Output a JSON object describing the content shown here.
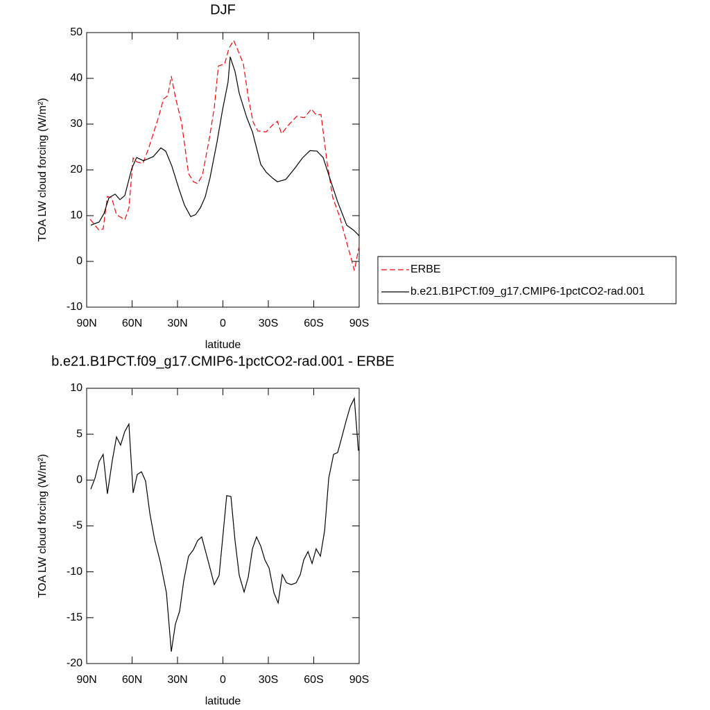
{
  "chart_data": [
    {
      "type": "line",
      "title": "DJF",
      "xlabel": "latitude",
      "ylabel": "TOA LW cloud forcing (W/m²)",
      "xlim": [
        90,
        -90
      ],
      "xticks": [
        {
          "value": 90,
          "label": "90N"
        },
        {
          "value": 60,
          "label": "60N"
        },
        {
          "value": 30,
          "label": "30N"
        },
        0,
        {
          "value": -30,
          "label": "30S"
        },
        {
          "value": -60,
          "label": "60S"
        },
        {
          "value": -90,
          "label": "90S"
        }
      ],
      "ylim": [
        -10,
        50
      ],
      "yticks": [
        -10,
        0,
        10,
        20,
        30,
        40,
        50
      ],
      "legend": "right",
      "series": [
        {
          "name": "ERBE",
          "color": "#ff0000",
          "dashed": true,
          "x": [
            87.7,
            81.8,
            79.1,
            76.3,
            73.5,
            70.3,
            64.8,
            62.1,
            59.3,
            56.6,
            52.9,
            49.3,
            42.9,
            39.2,
            36.4,
            34.1,
            31.4,
            27.3,
            22.7,
            19.5,
            16.7,
            13.5,
            9.0,
            5.7,
            3.0,
            -1.2,
            -3.9,
            -7.1,
            -9.8,
            -13.5,
            -16.7,
            -19.9,
            -23.1,
            -28.6,
            -32.8,
            -36.0,
            -38.7,
            -43.3,
            -48.8,
            -53.8,
            -58.4,
            -61.6,
            -64.8,
            -68.9,
            -72.6,
            -77.2,
            -81.8,
            -85.0,
            -86.8,
            -90.0
          ],
          "values": [
            9.2,
            6.8,
            7.1,
            14.2,
            13.9,
            10.2,
            9.1,
            11.7,
            22.6,
            21.7,
            21.4,
            24.5,
            31.1,
            35.5,
            36.2,
            40.5,
            35.9,
            30.3,
            19.2,
            17.4,
            17.0,
            18.9,
            26.8,
            33.6,
            42.7,
            43.2,
            46.5,
            48.3,
            46.2,
            43.2,
            35.9,
            30.5,
            28.5,
            28.3,
            29.8,
            30.6,
            27.9,
            29.8,
            31.7,
            31.4,
            33.3,
            32.0,
            32.1,
            21.4,
            13.9,
            9.7,
            4.1,
            0.3,
            -2.0,
            3.3
          ]
        },
        {
          "name": "b.e21.B1PCT.f09_g17.CMIP6-1pctCO2-rad.001",
          "color": "#000000",
          "dashed": false,
          "x": [
            87.3,
            81.8,
            78.5,
            75.3,
            71.2,
            68.0,
            64.8,
            60.2,
            57.0,
            52.4,
            46.0,
            41.0,
            37.8,
            33.7,
            29.1,
            25.4,
            21.3,
            18.1,
            14.9,
            11.7,
            8.5,
            3.9,
            0.2,
            -3.4,
            -4.8,
            -8.0,
            -10.8,
            -15.8,
            -19.5,
            -25.0,
            -28.6,
            -32.8,
            -36.0,
            -41.5,
            -47.4,
            -52.5,
            -57.5,
            -62.1,
            -66.2,
            -70.8,
            -75.8,
            -81.8,
            -86.4,
            -90.0
          ],
          "values": [
            7.9,
            8.6,
            10.5,
            13.9,
            14.7,
            13.5,
            14.4,
            20.3,
            22.7,
            22.0,
            22.9,
            24.8,
            24.1,
            20.8,
            15.9,
            12.3,
            9.8,
            10.2,
            11.7,
            14.1,
            18.3,
            26.1,
            33.2,
            39.2,
            44.7,
            41.5,
            36.7,
            31.4,
            28.3,
            21.2,
            19.5,
            18.2,
            17.4,
            17.9,
            20.3,
            22.6,
            24.2,
            24.1,
            22.7,
            18.0,
            13.0,
            7.9,
            6.8,
            5.6
          ]
        }
      ]
    },
    {
      "type": "line",
      "title": "b.e21.B1PCT.f09_g17.CMIP6-1pctCO2-rad.001 - ERBE",
      "xlabel": "latitude",
      "ylabel": "TOA LW cloud forcing (W/m²)",
      "xlim": [
        90,
        -90
      ],
      "xticks": [
        {
          "value": 90,
          "label": "90N"
        },
        {
          "value": 60,
          "label": "60N"
        },
        {
          "value": 30,
          "label": "30N"
        },
        0,
        {
          "value": -30,
          "label": "30S"
        },
        {
          "value": -60,
          "label": "60S"
        },
        {
          "value": -90,
          "label": "90S"
        }
      ],
      "ylim": [
        -20,
        10
      ],
      "yticks": [
        -20,
        -15,
        -10,
        -5,
        0,
        5,
        10
      ],
      "series": [
        {
          "color": "#000000",
          "dashed": false,
          "x": [
            87.3,
            84.5,
            81.8,
            79.1,
            76.3,
            73.1,
            70.3,
            67.6,
            64.8,
            62.1,
            59.3,
            56.6,
            53.8,
            51.1,
            48.3,
            45.1,
            41.4,
            37.3,
            34.1,
            31.4,
            28.6,
            25.9,
            22.7,
            19.5,
            16.7,
            14.0,
            9.0,
            5.7,
            2.5,
            -2.5,
            -5.3,
            -8.0,
            -10.8,
            -14.0,
            -16.7,
            -19.5,
            -22.2,
            -25.0,
            -27.7,
            -30.5,
            -33.7,
            -36.5,
            -39.2,
            -42.0,
            -45.2,
            -48.4,
            -51.1,
            -53.4,
            -56.2,
            -58.9,
            -61.6,
            -64.4,
            -67.2,
            -69.9,
            -73.1,
            -75.8,
            -78.6,
            -81.3,
            -84.1,
            -86.8,
            -89.5
          ],
          "values": [
            -1.0,
            0.2,
            2.0,
            2.8,
            -1.5,
            2.1,
            4.7,
            3.8,
            5.3,
            6.1,
            -1.4,
            0.6,
            0.9,
            -0.1,
            -3.6,
            -6.5,
            -8.9,
            -12.3,
            -18.7,
            -15.7,
            -14.3,
            -11.0,
            -8.3,
            -7.6,
            -6.6,
            -6.2,
            -9.3,
            -11.4,
            -10.4,
            -1.7,
            -1.8,
            -6.6,
            -10.4,
            -12.2,
            -10.6,
            -7.5,
            -6.2,
            -7.2,
            -8.7,
            -9.6,
            -12.3,
            -13.4,
            -10.3,
            -11.2,
            -11.4,
            -11.2,
            -10.3,
            -8.7,
            -7.8,
            -9.1,
            -7.5,
            -8.3,
            -5.5,
            0.2,
            2.8,
            3.0,
            4.7,
            6.4,
            8.0,
            8.9,
            3.2
          ]
        }
      ]
    }
  ]
}
